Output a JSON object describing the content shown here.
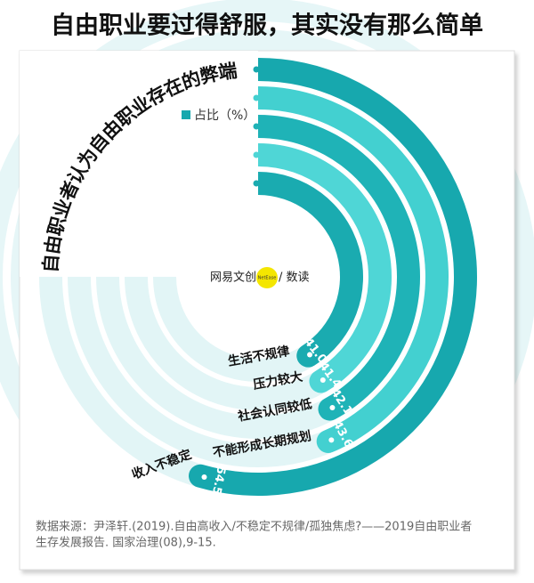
{
  "chart_data": {
    "type": "radial_bar",
    "title": "自由职业要过得舒服，其实没有那么简单",
    "subtitle": "自由职业者认为自由职业存在的弊端",
    "legend": "占比（%）",
    "categories": [
      "收入不稳定",
      "不能形成长期规划",
      "社会认同较低",
      "压力较大",
      "生活不规律"
    ],
    "values": [
      54.5,
      43.6,
      42.1,
      41.4,
      41.0
    ],
    "value_labels": [
      "54.5",
      "43.6",
      "42.1",
      "41.4",
      "41.0"
    ],
    "colors": [
      "#17a8ae",
      "#43d0d0",
      "#1fb3b7",
      "#4fd6d6",
      "#1aabb0"
    ],
    "ylim": [
      0,
      100
    ],
    "logo": [
      "网易文创",
      "NetEase",
      "/ 数读"
    ],
    "source": [
      "数据来源：尹泽轩.(2019).自由高收入/不稳定不规律/孤独焦虑?——2019自由职业者",
      "生存发展报告. 国家治理(08),9-15."
    ]
  }
}
